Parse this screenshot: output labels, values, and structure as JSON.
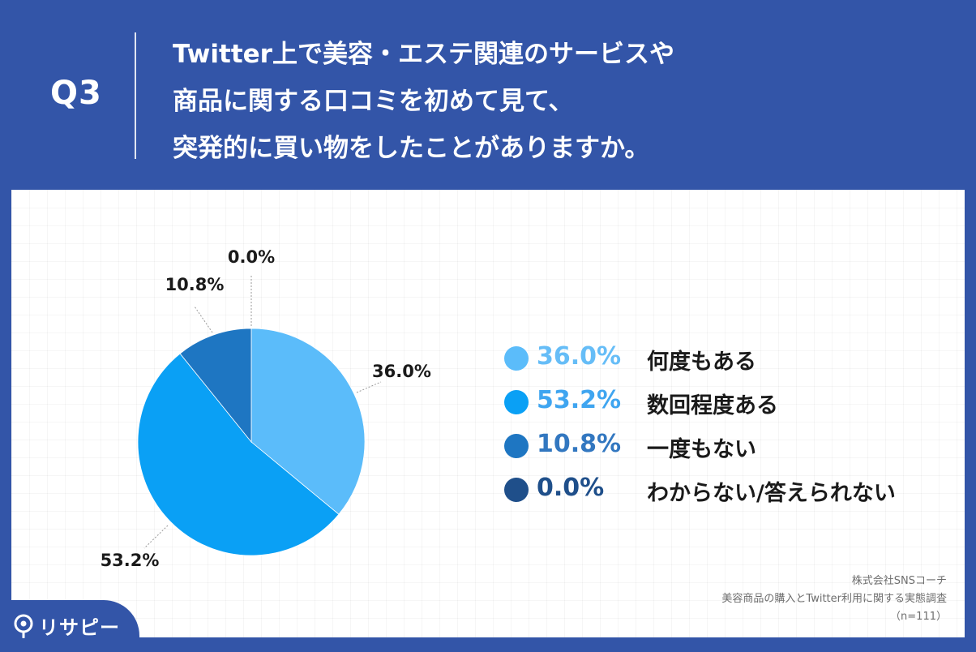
{
  "header": {
    "q_label": "Q3",
    "question_lines": [
      "Twitter上で美容・エステ関連のサービスや",
      "商品に関する口コミを初めて見て、",
      "突発的に買い物をしたことがありますか。"
    ]
  },
  "chart_data": {
    "type": "pie",
    "slices": [
      {
        "label": "何度もある",
        "value": 36.0,
        "display": "36.0%",
        "color": "#5bbcfa"
      },
      {
        "label": "数回程度ある",
        "value": 53.2,
        "display": "53.2%",
        "color": "#0aa0f5"
      },
      {
        "label": "一度もない",
        "value": 10.8,
        "display": "10.8%",
        "color": "#1e76c2"
      },
      {
        "label": "わからない/答えられない",
        "value": 0.0,
        "display": "0.0%",
        "color": "#1f4f8a"
      }
    ]
  },
  "legend_value_colors": [
    "#66bdf7",
    "#3fa5f0",
    "#3277c0",
    "#1f4f8a"
  ],
  "source": {
    "company": "株式会社SNSコーチ",
    "survey": "美容商品の購入とTwitter利用に関する実態調査",
    "sample": "（n=111）"
  },
  "brand": {
    "name": "リサピー",
    "icon": "pin-icon"
  }
}
